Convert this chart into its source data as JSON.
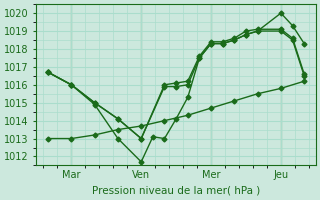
{
  "xlabel": "Pression niveau de la mer( hPa )",
  "bg_color": "#cce8dd",
  "grid_color": "#aaddcc",
  "line_color": "#1a6b1a",
  "ylim": [
    1011.5,
    1020.5
  ],
  "yticks": [
    1012,
    1013,
    1014,
    1015,
    1016,
    1017,
    1018,
    1019,
    1020
  ],
  "xlim": [
    0,
    12
  ],
  "vlines_x": [
    1.5,
    4.5,
    7.5,
    10.5
  ],
  "xtick_labels": [
    "Mar",
    "Ven",
    "Mer",
    "Jeu"
  ],
  "xtick_pos": [
    1.5,
    4.5,
    7.5,
    10.5
  ],
  "line1_x": [
    0.5,
    1.5,
    2.5,
    3.5,
    4.5,
    5.0,
    5.5,
    6.0,
    6.5,
    7.0,
    7.5,
    8.0,
    8.5,
    9.0,
    9.5,
    10.5,
    11.0,
    11.5
  ],
  "line1_y": [
    1016.7,
    1016.0,
    1014.9,
    1013.0,
    1011.7,
    1013.1,
    1013.0,
    1014.1,
    1015.3,
    1017.5,
    1018.3,
    1018.3,
    1018.5,
    1018.8,
    1019.0,
    1020.0,
    1019.3,
    1018.3
  ],
  "line2_x": [
    0.5,
    1.5,
    2.5,
    3.5,
    4.5,
    5.5,
    6.0,
    6.5,
    7.0,
    7.5,
    8.0,
    8.5,
    9.0,
    9.5,
    10.5,
    11.0,
    11.5
  ],
  "line2_y": [
    1016.7,
    1016.0,
    1015.0,
    1014.1,
    1013.0,
    1015.9,
    1015.9,
    1016.0,
    1017.5,
    1018.3,
    1018.3,
    1018.5,
    1018.8,
    1019.0,
    1019.0,
    1018.5,
    1016.5
  ],
  "line3_x": [
    0.5,
    1.5,
    2.5,
    3.5,
    4.5,
    5.5,
    6.0,
    6.5,
    7.0,
    7.5,
    8.0,
    8.5,
    9.0,
    9.5,
    10.5,
    11.0,
    11.5
  ],
  "line3_y": [
    1016.7,
    1016.0,
    1015.0,
    1014.1,
    1013.0,
    1016.0,
    1016.1,
    1016.2,
    1017.6,
    1018.4,
    1018.4,
    1018.6,
    1019.0,
    1019.1,
    1019.1,
    1018.6,
    1016.6
  ],
  "line4_x": [
    0.5,
    1.5,
    2.5,
    3.5,
    4.5,
    5.5,
    6.5,
    7.5,
    8.5,
    9.5,
    10.5,
    11.5
  ],
  "line4_y": [
    1013.0,
    1013.0,
    1013.2,
    1013.5,
    1013.7,
    1014.0,
    1014.3,
    1014.7,
    1015.1,
    1015.5,
    1015.8,
    1016.2
  ],
  "marker": "D",
  "marker_size": 2.5,
  "linewidth": 1.0
}
